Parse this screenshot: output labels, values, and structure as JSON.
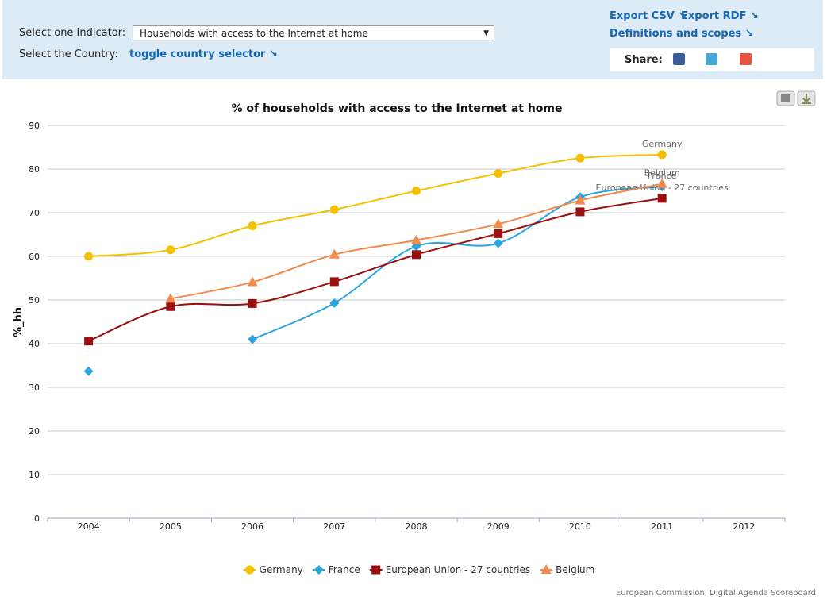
{
  "ui": {
    "indicator_label": "Select one Indicator:",
    "indicator_value": "Households with access to the Internet at home",
    "country_label": "Select the Country:",
    "country_toggle": "toggle country selector ↘",
    "export_csv": "Export CSV ↘",
    "export_rdf": "Export RDF ↘",
    "definitions": "Definitions and scopes ↘",
    "share": "Share:",
    "credit": "European Commission, Digital Agenda Scoreboard"
  },
  "chart_data": {
    "type": "line",
    "title": "% of households with access to the Internet at home",
    "y_label": "%_hh",
    "categories": [
      "2004",
      "2005",
      "2006",
      "2007",
      "2008",
      "2009",
      "2010",
      "2011",
      "2012"
    ],
    "ylim": [
      0,
      90
    ],
    "yticks": [
      0,
      10,
      20,
      30,
      40,
      50,
      60,
      70,
      80,
      90
    ],
    "grid": true,
    "legend": "bottom",
    "series": [
      {
        "name": "Germany",
        "color": "#f5c000",
        "marker": "circle",
        "values": [
          60,
          61.5,
          67,
          70.7,
          75,
          79,
          82.5,
          83.3,
          null
        ]
      },
      {
        "name": "France",
        "color": "#2ba4e0",
        "marker": "diamond",
        "values": [
          33.7,
          null,
          41,
          49.3,
          62.3,
          63,
          73.6,
          76,
          null
        ]
      },
      {
        "name": "European Union - 27 countries",
        "color": "#9b0f0f",
        "marker": "square",
        "values": [
          40.6,
          48.5,
          49.2,
          54.2,
          60.4,
          65.2,
          70.2,
          73.3,
          null
        ]
      },
      {
        "name": "Belgium",
        "color": "#f28a4c",
        "marker": "triangle",
        "values": [
          null,
          50.3,
          54.1,
          60.4,
          63.7,
          67.4,
          72.8,
          76.6,
          null
        ]
      }
    ]
  }
}
